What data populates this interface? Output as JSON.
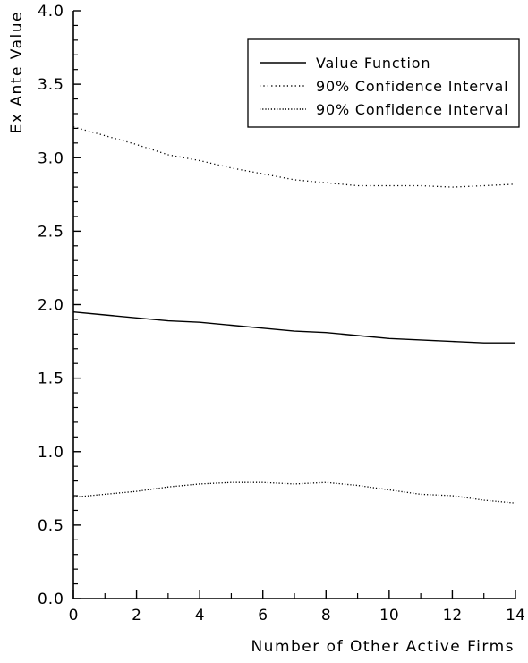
{
  "chart_data": {
    "type": "line",
    "title": "",
    "xlabel": "Number of Other Active Firms",
    "ylabel": "Ex Ante Value",
    "xlim": [
      0,
      14
    ],
    "ylim": [
      0.0,
      4.0
    ],
    "x_ticks": [
      0,
      2,
      4,
      6,
      8,
      10,
      12,
      14
    ],
    "x_tick_labels": [
      "0",
      "2",
      "4",
      "6",
      "8",
      "10",
      "12",
      "14"
    ],
    "y_ticks": [
      0.0,
      0.5,
      1.0,
      1.5,
      2.0,
      2.5,
      3.0,
      3.5,
      4.0
    ],
    "y_tick_labels": [
      "0.0",
      "0.5",
      "1.0",
      "1.5",
      "2.0",
      "2.5",
      "3.0",
      "3.5",
      "4.0"
    ],
    "grid": false,
    "legend_position": "top-right",
    "x": [
      0,
      1,
      2,
      3,
      4,
      5,
      6,
      7,
      8,
      9,
      10,
      11,
      12,
      13,
      14
    ],
    "series": [
      {
        "name": "Value Function",
        "style": "solid",
        "color": "#000000",
        "values": [
          1.95,
          1.93,
          1.91,
          1.89,
          1.88,
          1.86,
          1.84,
          1.82,
          1.81,
          1.79,
          1.77,
          1.76,
          1.75,
          1.74,
          1.74
        ]
      },
      {
        "name": "90% Confidence Interval",
        "style": "dotted-sparse",
        "color": "#000000",
        "values": [
          3.21,
          3.15,
          3.09,
          3.02,
          2.98,
          2.93,
          2.89,
          2.85,
          2.83,
          2.81,
          2.81,
          2.81,
          2.8,
          2.81,
          2.82
        ]
      },
      {
        "name": "90% Confidence Interval",
        "style": "dotted-dense",
        "color": "#000000",
        "values": [
          0.69,
          0.71,
          0.73,
          0.76,
          0.78,
          0.79,
          0.79,
          0.78,
          0.79,
          0.77,
          0.74,
          0.71,
          0.7,
          0.67,
          0.65
        ]
      }
    ]
  }
}
